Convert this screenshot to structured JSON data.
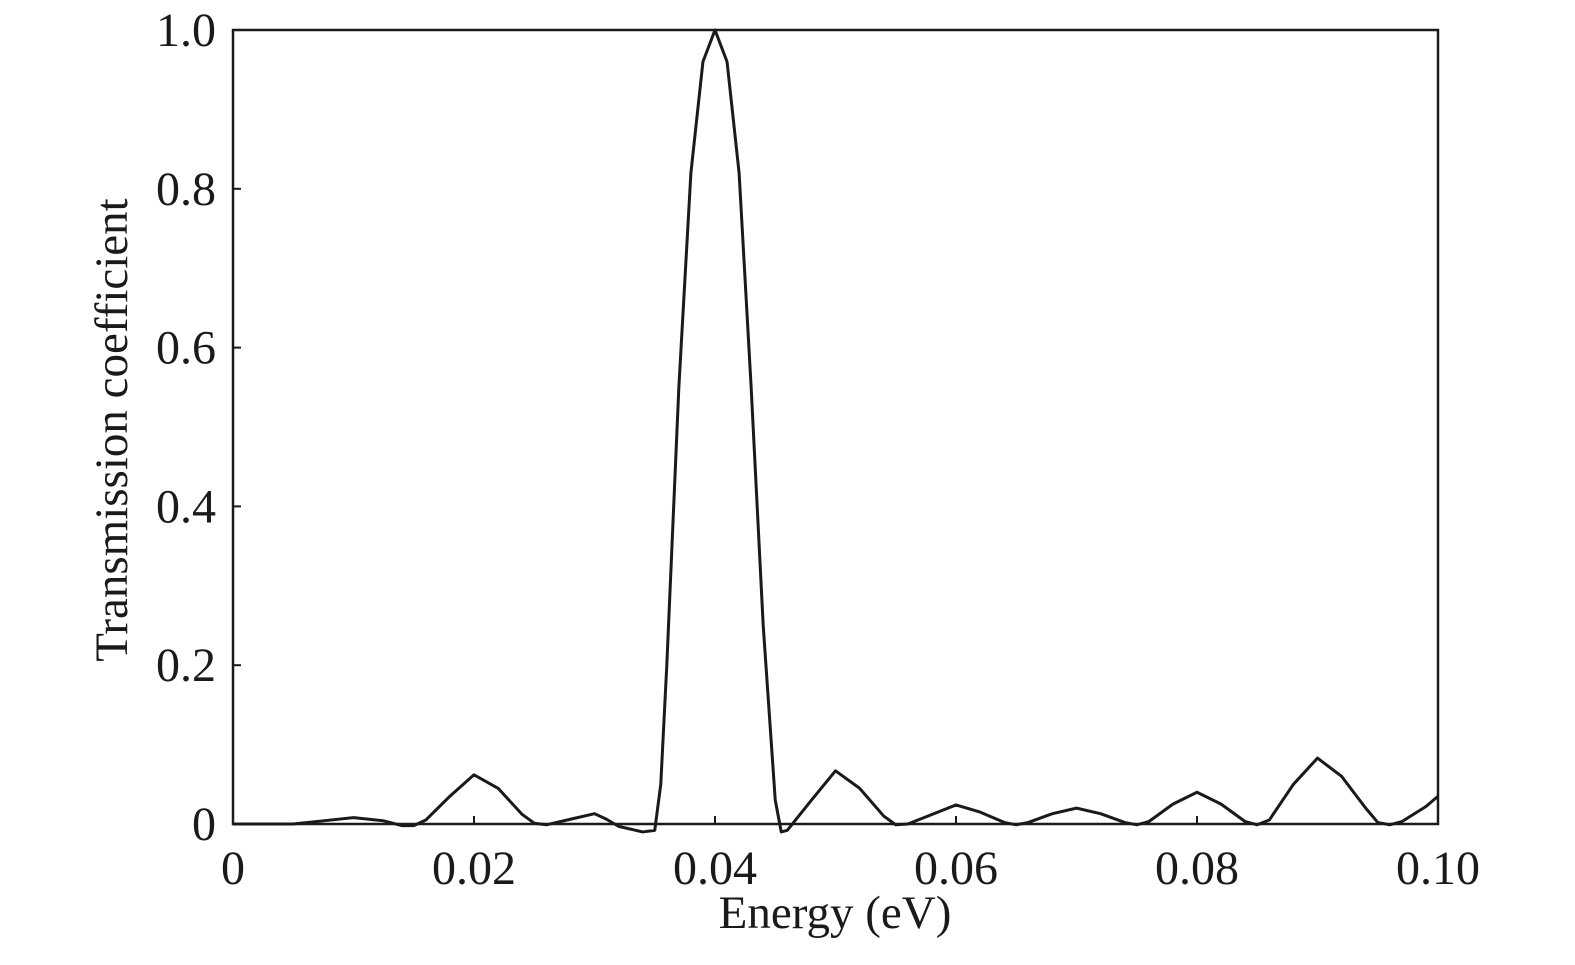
{
  "chart_data": {
    "type": "line",
    "x_label": "Energy (eV)",
    "y_label": "Transmission coefficient",
    "xlim": [
      0,
      0.1
    ],
    "ylim": [
      0,
      1
    ],
    "xticks": [
      0,
      0.02,
      0.04,
      0.06,
      0.08,
      {
        "value": 0.1,
        "label": "0.10"
      }
    ],
    "yticks": [
      0,
      0.2,
      0.4,
      0.6,
      0.8,
      {
        "value": 1,
        "label": "1.0"
      }
    ],
    "grid": false,
    "series": [
      {
        "color": "#1a1a1a",
        "x": [
          0,
          0.005,
          0.0075,
          0.01,
          0.0125,
          0.014,
          0.015,
          0.016,
          0.018,
          0.02,
          0.022,
          0.024,
          0.025,
          0.026,
          0.028,
          0.03,
          0.031,
          0.032,
          0.034,
          0.035,
          0.0355,
          0.036,
          0.037,
          0.038,
          0.039,
          0.04,
          0.041,
          0.042,
          0.043,
          0.044,
          0.045,
          0.0455,
          0.046,
          0.048,
          0.05,
          0.052,
          0.054,
          0.055,
          0.056,
          0.058,
          0.06,
          0.062,
          0.064,
          0.065,
          0.066,
          0.068,
          0.07,
          0.072,
          0.074,
          0.075,
          0.076,
          0.078,
          0.08,
          0.082,
          0.084,
          0.085,
          0.086,
          0.088,
          0.09,
          0.092,
          0.094,
          0.095,
          0.096,
          0.097,
          0.099,
          0.1
        ],
        "values": [
          0,
          0,
          0.004,
          0.008,
          0.004,
          -0.002,
          -0.002,
          0.005,
          0.035,
          0.062,
          0.045,
          0.012,
          0.001,
          -0.001,
          0.006,
          0.013,
          0.006,
          -0.003,
          -0.01,
          -0.008,
          0.05,
          0.2,
          0.55,
          0.82,
          0.96,
          1,
          0.96,
          0.82,
          0.55,
          0.25,
          0.03,
          -0.01,
          -0.008,
          0.03,
          0.067,
          0.045,
          0.01,
          -0.001,
          0,
          0.012,
          0.024,
          0.015,
          0.002,
          -0.001,
          0.002,
          0.013,
          0.02,
          0.013,
          0.002,
          -0.001,
          0.003,
          0.025,
          0.04,
          0.025,
          0.003,
          -0.001,
          0.005,
          0.05,
          0.083,
          0.06,
          0.02,
          0.002,
          -0.001,
          0.003,
          0.022,
          0.035
        ]
      }
    ]
  }
}
